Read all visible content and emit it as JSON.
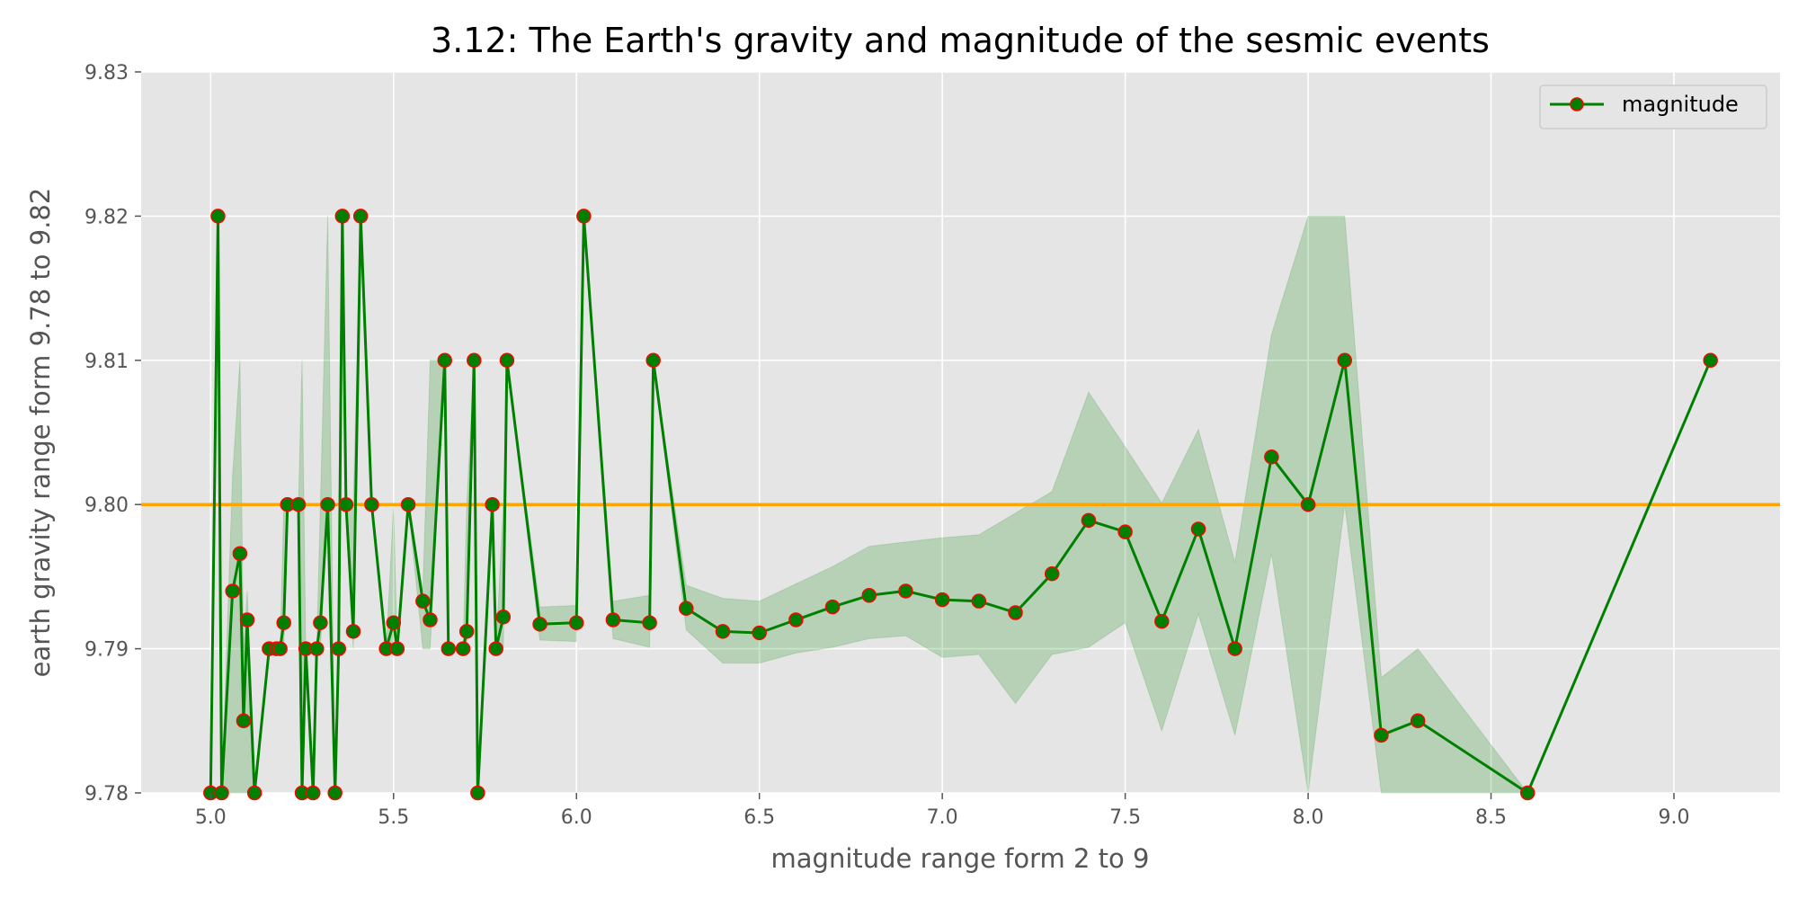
{
  "chart_data": {
    "type": "line",
    "title": "3.12: The Earth's gravity and magnitude of the sesmic events",
    "xlabel": "magnitude range form 2 to 9",
    "ylabel": "earth gravity range form 9.78 to 9.82",
    "xlim": [
      4.81,
      9.29
    ],
    "ylim": [
      9.78,
      9.83
    ],
    "x_ticks": [
      "5.0",
      "5.5",
      "6.0",
      "6.5",
      "7.0",
      "7.5",
      "8.0",
      "8.5",
      "9.0"
    ],
    "y_ticks": [
      "9.78",
      "9.79",
      "9.80",
      "9.81",
      "9.82",
      "9.83"
    ],
    "grid": true,
    "legend_position": "top-right",
    "reference_line": {
      "y": 9.8,
      "color": "#FFA500"
    },
    "colors": {
      "line": "#008000",
      "marker_edge": "#FF0000",
      "band": "#008000",
      "background": "#E5E5E5",
      "grid": "#FFFFFF"
    },
    "series": [
      {
        "name": "magnitude",
        "x": [
          5.0,
          5.02,
          5.03,
          5.06,
          5.08,
          5.09,
          5.1,
          5.12,
          5.16,
          5.18,
          5.19,
          5.2,
          5.21,
          5.24,
          5.25,
          5.26,
          5.28,
          5.29,
          5.3,
          5.32,
          5.34,
          5.35,
          5.36,
          5.37,
          5.39,
          5.41,
          5.44,
          5.48,
          5.5,
          5.51,
          5.54,
          5.58,
          5.6,
          5.64,
          5.65,
          5.69,
          5.7,
          5.72,
          5.73,
          5.77,
          5.78,
          5.8,
          5.81,
          5.9,
          6.0,
          6.02,
          6.1,
          6.2,
          6.21,
          6.3,
          6.4,
          6.5,
          6.6,
          6.7,
          6.8,
          6.9,
          7.0,
          7.1,
          7.2,
          7.3,
          7.4,
          7.5,
          7.6,
          7.7,
          7.8,
          7.9,
          8.0,
          8.1,
          8.2,
          8.3,
          8.6,
          9.1
        ],
        "y": [
          9.78,
          9.82,
          9.78,
          9.794,
          9.7966,
          9.785,
          9.792,
          9.78,
          9.79,
          9.79,
          9.79,
          9.7918,
          9.8,
          9.8,
          9.78,
          9.79,
          9.78,
          9.79,
          9.7918,
          9.8,
          9.78,
          9.79,
          9.82,
          9.8,
          9.7912,
          9.82,
          9.8,
          9.79,
          9.7918,
          9.79,
          9.8,
          9.7933,
          9.792,
          9.81,
          9.79,
          9.79,
          9.7912,
          9.81,
          9.78,
          9.8,
          9.79,
          9.7922,
          9.81,
          9.7917,
          9.7918,
          9.82,
          9.792,
          9.7918,
          9.81,
          9.7928,
          9.7912,
          9.7911,
          9.792,
          9.7929,
          9.7937,
          9.794,
          9.7934,
          9.7933,
          9.7925,
          9.7952,
          9.7989,
          9.7981,
          9.7919,
          9.7983,
          9.79,
          9.8033,
          9.8,
          9.81,
          9.784,
          9.785,
          9.78,
          9.81
        ],
        "ci_lower": [
          9.78,
          9.82,
          9.78,
          9.78,
          9.78,
          9.78,
          9.78,
          9.78,
          9.79,
          9.79,
          9.79,
          9.79,
          9.8,
          9.8,
          9.78,
          9.79,
          9.78,
          9.79,
          9.79,
          9.8,
          9.78,
          9.79,
          9.82,
          9.8,
          9.79,
          9.82,
          9.8,
          9.79,
          9.79,
          9.79,
          9.8,
          9.79,
          9.79,
          9.81,
          9.79,
          9.79,
          9.79,
          9.81,
          9.78,
          9.8,
          9.79,
          9.79,
          9.81,
          9.7906,
          9.7905,
          9.82,
          9.7907,
          9.7901,
          9.81,
          9.7913,
          9.789,
          9.789,
          9.7897,
          9.7901,
          9.7907,
          9.7909,
          9.7894,
          9.7896,
          9.7862,
          9.7896,
          9.7901,
          9.7918,
          9.7843,
          9.7924,
          9.784,
          9.7966,
          9.78,
          9.8,
          9.78,
          9.78,
          9.78,
          9.81
        ],
        "ci_upper": [
          9.78,
          9.82,
          9.78,
          9.802,
          9.81,
          9.79,
          9.794,
          9.78,
          9.79,
          9.79,
          9.79,
          9.8,
          9.8,
          9.8,
          9.81,
          9.79,
          9.78,
          9.79,
          9.8,
          9.82,
          9.78,
          9.79,
          9.82,
          9.8,
          9.8,
          9.82,
          9.8,
          9.79,
          9.8,
          9.79,
          9.8,
          9.794,
          9.81,
          9.81,
          9.79,
          9.79,
          9.8,
          9.81,
          9.78,
          9.8,
          9.79,
          9.8,
          9.81,
          9.7929,
          9.793,
          9.82,
          9.7933,
          9.7937,
          9.81,
          9.7944,
          9.7935,
          9.7933,
          9.7945,
          9.7957,
          9.7971,
          9.7974,
          9.7977,
          9.7979,
          9.7994,
          9.8009,
          9.8078,
          9.804,
          9.8001,
          9.8052,
          9.796,
          9.8118,
          9.82,
          9.82,
          9.788,
          9.79,
          9.78,
          9.81
        ]
      }
    ]
  }
}
